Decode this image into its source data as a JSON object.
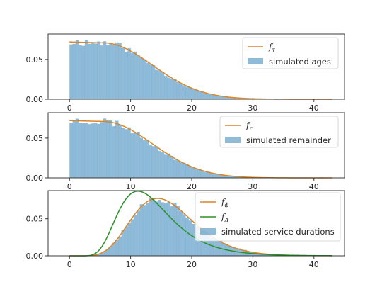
{
  "colors": {
    "hist": "#1f77b4",
    "hist_opacity": 0.5,
    "orange": "#d9862a",
    "green": "#2a912a",
    "axis": "#262626"
  },
  "chart_data": [
    {
      "type": "bar",
      "xlim": [
        -3.5,
        45
      ],
      "ylim": [
        0,
        0.082
      ],
      "xticks": [
        0,
        10,
        20,
        30,
        40
      ],
      "xtick_labels": [
        "0",
        "10",
        "20",
        "30",
        "40"
      ],
      "yticks": [
        0,
        0.05
      ],
      "ytick_labels": [
        "0.00",
        "0.05"
      ],
      "grid": false,
      "legend_placement": "top-right",
      "hist": {
        "name": "simulated ages",
        "x_range": [
          0,
          43
        ],
        "bins": 86,
        "color": "#1f77b4",
        "density": {
          "kind": "normal_half",
          "sigma": 9.5,
          "flat_until": 5.5,
          "peak": 0.072
        }
      },
      "curves": [
        {
          "name": "f",
          "sub": "τ",
          "color": "#d9862a",
          "density": {
            "kind": "normal_half",
            "sigma": 9.5,
            "flat_until": 5.5,
            "peak": 0.072
          }
        }
      ],
      "bar_noise_seed": 11
    },
    {
      "type": "bar",
      "xlim": [
        -3.5,
        45
      ],
      "ylim": [
        0,
        0.082
      ],
      "xticks": [
        0,
        10,
        20,
        30,
        40
      ],
      "xtick_labels": [
        "0",
        "10",
        "20",
        "30",
        "40"
      ],
      "yticks": [
        0,
        0.05
      ],
      "ytick_labels": [
        "0.00",
        "0.05"
      ],
      "grid": false,
      "legend_placement": "top-right",
      "hist": {
        "name": "simulated remainder",
        "x_range": [
          0,
          43
        ],
        "bins": 86,
        "color": "#1f77b4",
        "density": {
          "kind": "normal_half",
          "sigma": 9.5,
          "flat_until": 5.5,
          "peak": 0.072
        }
      },
      "curves": [
        {
          "name": "f",
          "sub": "r",
          "color": "#d9862a",
          "density": {
            "kind": "normal_half",
            "sigma": 9.5,
            "flat_until": 5.5,
            "peak": 0.072
          }
        }
      ],
      "bar_noise_seed": 23
    },
    {
      "type": "bar",
      "xlim": [
        -3.5,
        45
      ],
      "ylim": [
        0,
        0.088
      ],
      "xticks": [
        0,
        10,
        20,
        30,
        40
      ],
      "xtick_labels": [
        "0",
        "10",
        "20",
        "30",
        "40"
      ],
      "yticks": [
        0,
        0.05
      ],
      "ytick_labels": [
        "0.00",
        "0.05"
      ],
      "grid": false,
      "legend_placement": "top-right",
      "hist": {
        "name": "simulated service durations",
        "x_range": [
          0,
          43
        ],
        "bins": 86,
        "color": "#1f77b4",
        "density": {
          "kind": "gamma",
          "shape": 9,
          "scale": 1.8
        }
      },
      "curves": [
        {
          "name": "f",
          "sub": "ϕ",
          "color": "#d9862a",
          "density": {
            "kind": "gamma",
            "shape": 9,
            "scale": 1.8
          }
        },
        {
          "name": "f",
          "sub": "Δ",
          "color": "#2a912a",
          "density": {
            "kind": "lognormal",
            "mu": 2.56,
            "sigma": 0.38
          }
        }
      ],
      "bar_noise_seed": 37
    }
  ]
}
